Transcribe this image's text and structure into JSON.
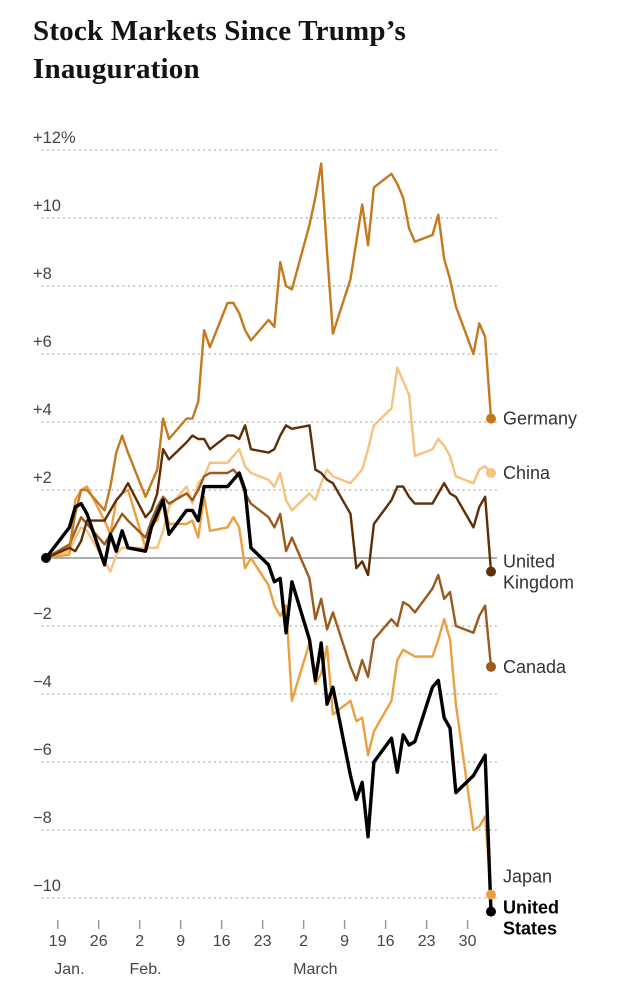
{
  "title": {
    "line1": "Stock Markets Since Trump’s",
    "line2": "Inauguration"
  },
  "chart_data": {
    "type": "line",
    "title": "Stock Markets Since Trump’s Inauguration",
    "ylim": [
      -11,
      12.5
    ],
    "x_day_range": [
      0,
      76
    ],
    "grid": "dotted-horizontal",
    "legend_position": "right-of-line-ends",
    "start_dot": {
      "color": "#000000",
      "value": 0
    },
    "y_axis": {
      "zero_line": true,
      "ticks": [
        {
          "value": 12,
          "label": "+12%"
        },
        {
          "value": 10,
          "label": "+10"
        },
        {
          "value": 8,
          "label": "+8"
        },
        {
          "value": 6,
          "label": "+6"
        },
        {
          "value": 4,
          "label": "+4"
        },
        {
          "value": 2,
          "label": "+2"
        },
        {
          "value": -2,
          "label": "−2"
        },
        {
          "value": -4,
          "label": "−4"
        },
        {
          "value": -6,
          "label": "−6"
        },
        {
          "value": -8,
          "label": "−8"
        },
        {
          "value": -10,
          "label": "−10"
        }
      ]
    },
    "x_axis": {
      "ticks": [
        {
          "day": 2,
          "label": "19"
        },
        {
          "day": 9,
          "label": "26"
        },
        {
          "day": 16,
          "label": "2"
        },
        {
          "day": 23,
          "label": "9"
        },
        {
          "day": 30,
          "label": "16"
        },
        {
          "day": 37,
          "label": "23"
        },
        {
          "day": 44,
          "label": "2"
        },
        {
          "day": 51,
          "label": "9"
        },
        {
          "day": 58,
          "label": "16"
        },
        {
          "day": 65,
          "label": "23"
        },
        {
          "day": 72,
          "label": "30"
        }
      ],
      "months": [
        {
          "day": 4,
          "label": "Jan."
        },
        {
          "day": 17,
          "label": "Feb."
        },
        {
          "day": 46,
          "label": "March"
        }
      ]
    },
    "x_days": [
      0,
      4,
      5,
      6,
      7,
      10,
      11,
      12,
      13,
      14,
      17,
      18,
      19,
      20,
      21,
      24,
      25,
      26,
      27,
      28,
      31,
      32,
      33,
      34,
      35,
      38,
      39,
      40,
      41,
      42,
      45,
      46,
      47,
      48,
      49,
      52,
      53,
      54,
      55,
      56,
      59,
      60,
      61,
      62,
      63,
      66,
      67,
      68,
      69,
      70,
      73,
      74,
      75,
      76
    ],
    "series": [
      {
        "id": "china",
        "name": "China",
        "color": "#f6c27d",
        "width": 2.4,
        "label_lines": [
          "China"
        ],
        "label_dy": 0,
        "bold": false,
        "values": [
          0,
          0.2,
          0.6,
          0.9,
          0.8,
          -0.1,
          -0.4,
          0.1,
          0.3,
          0.3,
          0.3,
          0.3,
          0.3,
          0.8,
          1.5,
          2.1,
          1.6,
          2.2,
          2.4,
          2.8,
          2.8,
          3.0,
          3.2,
          2.7,
          2.5,
          2.3,
          2.1,
          2.5,
          1.7,
          1.4,
          1.9,
          1.7,
          2.2,
          2.6,
          2.4,
          2.2,
          2.4,
          2.6,
          3.2,
          3.9,
          4.4,
          5.6,
          5.2,
          4.8,
          3.0,
          3.2,
          3.5,
          3.3,
          3.0,
          2.4,
          2.2,
          2.6,
          2.7,
          2.5
        ]
      },
      {
        "id": "japan",
        "name": "Japan",
        "color": "#ec9f3e",
        "width": 2.4,
        "label_lines": [
          "Japan"
        ],
        "label_dy": -18,
        "bold": false,
        "values": [
          0,
          0.1,
          1.7,
          2.0,
          2.1,
          1.1,
          0.7,
          1.7,
          1.9,
          2.0,
          0.3,
          1.0,
          1.1,
          1.7,
          1.0,
          1.0,
          1.1,
          0.6,
          1.8,
          0.8,
          0.9,
          1.2,
          0.9,
          -0.3,
          0.0,
          -0.8,
          -1.4,
          -1.7,
          -1.4,
          -4.2,
          -2.5,
          -3.7,
          -3.4,
          -2.6,
          -4.6,
          -4.2,
          -4.8,
          -4.7,
          -5.8,
          -5.1,
          -4.2,
          -3.0,
          -2.7,
          -2.8,
          -2.9,
          -2.9,
          -2.4,
          -1.8,
          -2.4,
          -4.3,
          -8.0,
          -7.9,
          -7.6,
          -9.9
        ]
      },
      {
        "id": "canada",
        "name": "Canada",
        "color": "#9c5a1d",
        "width": 2.4,
        "label_lines": [
          "Canada"
        ],
        "label_dy": 0,
        "bold": false,
        "values": [
          0,
          0.4,
          0.8,
          1.2,
          1.0,
          0.4,
          0.7,
          1.0,
          1.3,
          1.1,
          0.6,
          1.1,
          1.5,
          1.8,
          1.6,
          1.9,
          1.7,
          2.0,
          2.4,
          2.5,
          2.5,
          2.6,
          2.4,
          1.9,
          1.6,
          1.2,
          0.9,
          1.3,
          0.2,
          0.6,
          -0.6,
          -1.8,
          -1.2,
          -2.1,
          -1.6,
          -3.2,
          -3.6,
          -3.0,
          -3.5,
          -2.4,
          -1.8,
          -2.0,
          -1.3,
          -1.4,
          -1.6,
          -0.9,
          -0.5,
          -1.2,
          -1.0,
          -2.0,
          -2.2,
          -1.7,
          -1.4,
          -3.2
        ]
      },
      {
        "id": "germany",
        "name": "Germany",
        "color": "#c5791d",
        "width": 2.4,
        "label_lines": [
          "Germany"
        ],
        "label_dy": 0,
        "bold": false,
        "values": [
          0,
          0.3,
          1.3,
          2.0,
          2.0,
          1.4,
          2.1,
          3.1,
          3.6,
          3.1,
          1.8,
          2.2,
          2.6,
          4.1,
          3.5,
          4.1,
          4.1,
          4.6,
          6.7,
          6.2,
          7.5,
          7.5,
          7.2,
          6.7,
          6.4,
          7.0,
          6.8,
          8.7,
          8.0,
          7.9,
          9.8,
          10.6,
          11.6,
          9.0,
          6.6,
          8.2,
          9.3,
          10.4,
          9.2,
          10.9,
          11.3,
          11.0,
          10.6,
          9.7,
          9.3,
          9.5,
          10.1,
          8.8,
          8.2,
          7.4,
          6.0,
          6.9,
          6.5,
          4.1
        ]
      },
      {
        "id": "united-kingdom",
        "name": "United Kingdom",
        "color": "#5f2e04",
        "width": 2.4,
        "label_lines": [
          "United",
          "Kingdom"
        ],
        "label_dy": 0,
        "bold": false,
        "values": [
          0,
          0.3,
          0.2,
          0.5,
          1.1,
          1.1,
          1.4,
          1.7,
          1.9,
          2.2,
          1.2,
          1.4,
          1.9,
          3.2,
          2.9,
          3.4,
          3.6,
          3.5,
          3.5,
          3.2,
          3.6,
          3.6,
          3.5,
          3.9,
          3.2,
          3.1,
          3.2,
          3.6,
          3.9,
          3.8,
          3.9,
          2.6,
          2.5,
          2.3,
          2.2,
          1.3,
          -0.3,
          -0.1,
          -0.5,
          1.0,
          1.7,
          2.1,
          2.1,
          1.8,
          1.6,
          1.6,
          1.9,
          2.2,
          1.9,
          1.8,
          0.9,
          1.5,
          1.8,
          -0.4
        ]
      },
      {
        "id": "united-states",
        "name": "United States",
        "color": "#000000",
        "width": 3.4,
        "label_lines": [
          "United",
          "States"
        ],
        "label_dy": 6,
        "bold": true,
        "values": [
          0,
          0.9,
          1.5,
          1.6,
          1.3,
          -0.2,
          0.7,
          0.2,
          0.8,
          0.3,
          0.2,
          0.9,
          1.3,
          1.7,
          0.7,
          1.4,
          1.4,
          1.1,
          2.1,
          2.1,
          2.1,
          2.3,
          2.5,
          2.0,
          0.3,
          -0.2,
          -0.7,
          -0.6,
          -2.2,
          -0.7,
          -2.4,
          -3.6,
          -2.5,
          -4.3,
          -3.8,
          -6.4,
          -7.1,
          -6.6,
          -8.2,
          -6.0,
          -5.3,
          -6.3,
          -5.2,
          -5.5,
          -5.4,
          -3.8,
          -3.6,
          -4.7,
          -5.0,
          -6.9,
          -6.4,
          -6.1,
          -5.8,
          -10.4
        ]
      }
    ]
  }
}
